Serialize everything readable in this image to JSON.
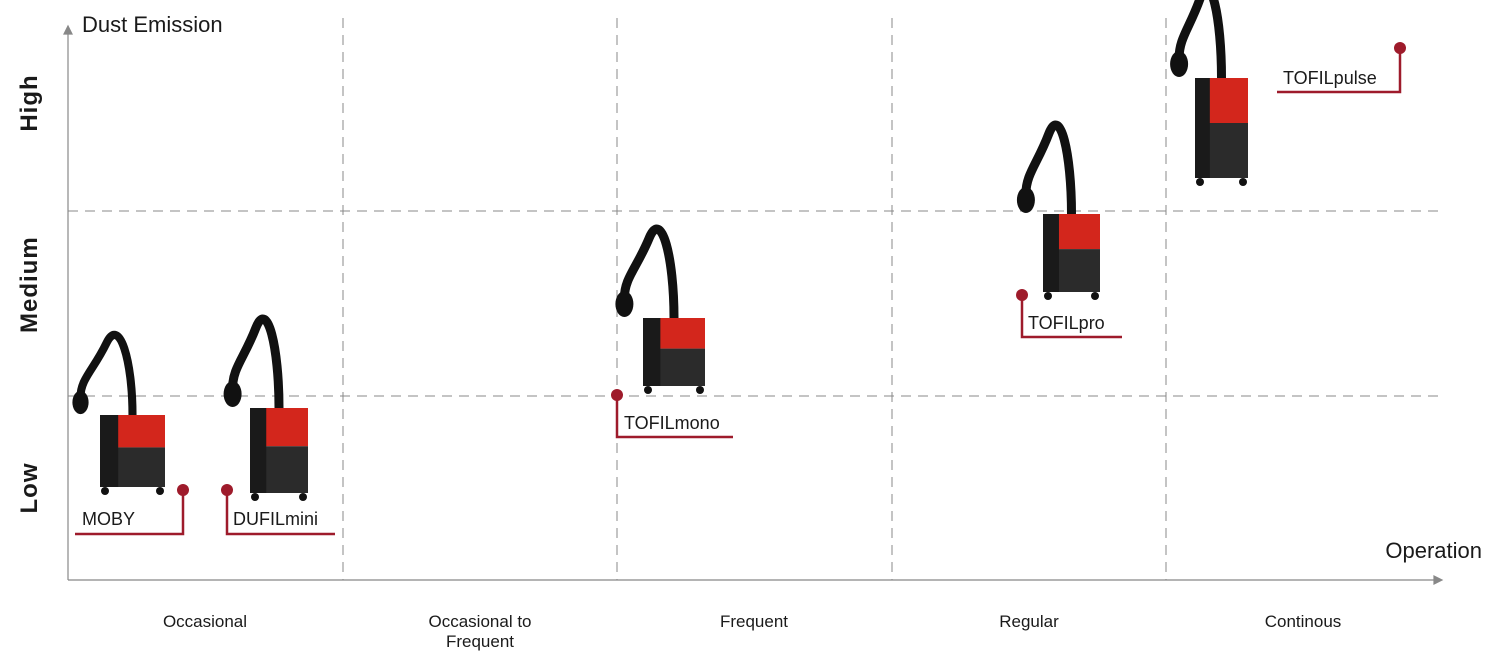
{
  "y_axis": {
    "title": "Dust Emission",
    "levels": [
      "Low",
      "Medium",
      "High"
    ]
  },
  "x_axis": {
    "title": "Operation",
    "levels": [
      "Occasional",
      "Occasional to Frequent",
      "Frequent",
      "Regular",
      "Continous"
    ]
  },
  "products": [
    "MOBY",
    "DUFILmini",
    "TOFILmono",
    "TOFILpro",
    "TOFILpulse"
  ]
}
